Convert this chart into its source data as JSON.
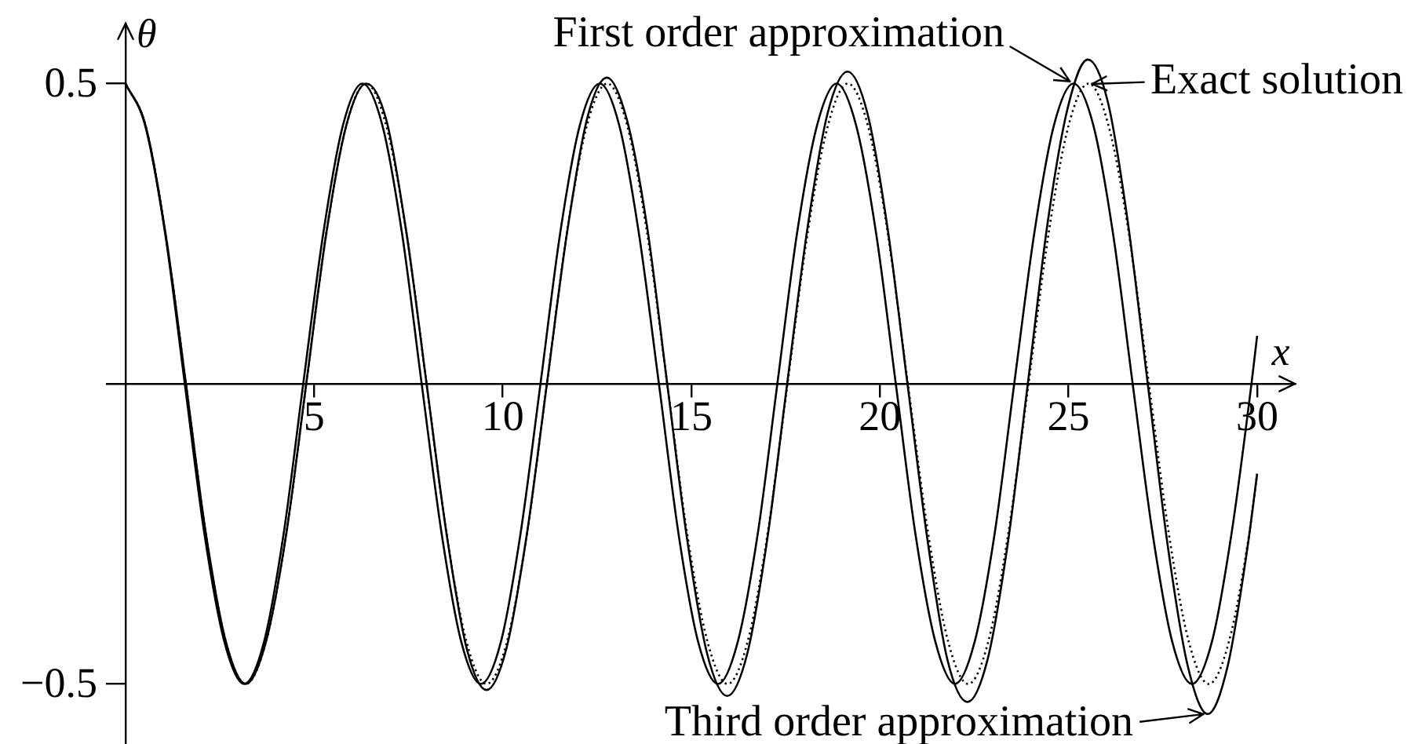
{
  "chart_data": {
    "type": "line",
    "xlabel": "x",
    "ylabel": "θ",
    "xlim": [
      -0.5,
      31
    ],
    "ylim": [
      -0.6,
      0.6
    ],
    "xticks": [
      5,
      10,
      15,
      20,
      25,
      30
    ],
    "yticks": [
      {
        "value": -0.5,
        "label": "−0.5"
      },
      0.5
    ],
    "line_style": "solid",
    "series": [
      {
        "name": "Exact solution",
        "color": "#000000",
        "line_style": "dotted",
        "x": [
          0,
          0.53,
          1.06,
          1.6,
          2.13,
          2.66,
          3.19,
          3.72,
          4.26,
          4.79,
          5.32,
          5.85,
          6.38,
          6.91,
          7.45,
          7.98,
          8.51,
          9.04,
          9.57,
          10.11,
          10.64,
          11.17,
          11.7,
          12.23,
          12.77,
          13.3,
          13.83,
          14.36,
          14.89,
          15.43,
          15.96,
          16.49,
          17.02,
          17.55,
          18.08,
          18.62,
          19.15,
          19.68,
          20.21,
          20.74,
          21.28,
          21.81,
          22.34,
          22.87,
          23.4,
          23.94,
          24.47,
          25,
          25.53,
          26.06,
          26.6,
          27.13,
          27.66,
          28.19,
          28.72,
          29.25,
          29.79,
          30
        ],
        "values": [
          0.5,
          0.43,
          0.25,
          0,
          -0.25,
          -0.43,
          -0.5,
          -0.43,
          -0.25,
          0,
          0.25,
          0.43,
          0.5,
          0.43,
          0.25,
          0,
          -0.25,
          -0.43,
          -0.5,
          -0.43,
          -0.25,
          0,
          0.25,
          0.43,
          0.5,
          0.43,
          0.25,
          0,
          -0.25,
          -0.43,
          -0.5,
          -0.43,
          -0.25,
          0,
          0.25,
          0.43,
          0.5,
          0.43,
          0.25,
          0,
          -0.25,
          -0.43,
          -0.5,
          -0.43,
          -0.25,
          0,
          0.25,
          0.43,
          0.5,
          0.43,
          0.25,
          0,
          -0.25,
          -0.43,
          -0.5,
          -0.43,
          -0.25,
          -0.15
        ]
      },
      {
        "name": "First order approximation",
        "color": "#000000",
        "x": [
          0,
          0.52,
          1.05,
          1.57,
          2.09,
          2.62,
          3.14,
          3.67,
          4.19,
          4.71,
          5.24,
          5.76,
          6.28,
          6.81,
          7.33,
          7.85,
          8.38,
          8.9,
          9.42,
          9.95,
          10.47,
          11,
          11.52,
          12.04,
          12.57,
          13.09,
          13.61,
          14.14,
          14.66,
          15.18,
          15.71,
          16.23,
          16.76,
          17.28,
          17.8,
          18.33,
          18.85,
          19.37,
          19.9,
          20.42,
          20.94,
          21.47,
          21.99,
          22.51,
          23.04,
          23.56,
          24.09,
          24.61,
          25.13,
          25.66,
          26.18,
          26.7,
          27.23,
          27.75,
          28.27,
          28.8,
          29.32,
          29.85,
          30
        ],
        "values": [
          0.5,
          0.43,
          0.25,
          0,
          -0.25,
          -0.43,
          -0.5,
          -0.43,
          -0.25,
          0,
          0.25,
          0.43,
          0.5,
          0.43,
          0.25,
          0,
          -0.25,
          -0.43,
          -0.5,
          -0.43,
          -0.25,
          0,
          0.25,
          0.43,
          0.5,
          0.43,
          0.25,
          0,
          -0.25,
          -0.43,
          -0.5,
          -0.43,
          -0.25,
          0,
          0.25,
          0.43,
          0.5,
          0.43,
          0.25,
          0,
          -0.25,
          -0.43,
          -0.5,
          -0.43,
          -0.25,
          0,
          0.25,
          0.43,
          0.5,
          0.43,
          0.25,
          0,
          -0.25,
          -0.43,
          -0.5,
          -0.43,
          -0.25,
          0,
          0.08
        ]
      },
      {
        "name": "Third order approximation",
        "color": "#000000",
        "x": [
          0,
          0.53,
          1.06,
          1.6,
          2.13,
          2.66,
          3.19,
          3.72,
          4.26,
          4.79,
          5.32,
          5.85,
          6.38,
          6.91,
          7.45,
          7.98,
          8.51,
          9.04,
          9.57,
          10.1,
          10.64,
          11.17,
          11.7,
          12.23,
          12.76,
          13.29,
          13.83,
          14.36,
          14.89,
          15.42,
          15.95,
          16.48,
          17.01,
          17.54,
          18.08,
          18.61,
          19.14,
          19.67,
          20.2,
          20.73,
          21.26,
          21.79,
          22.32,
          22.85,
          23.38,
          23.92,
          24.45,
          24.98,
          25.51,
          26.04,
          26.57,
          27.1,
          27.63,
          28.16,
          28.69,
          29.22,
          29.75,
          30
        ],
        "values": [
          0.5,
          0.43,
          0.25,
          0,
          -0.25,
          -0.43,
          -0.5,
          -0.43,
          -0.25,
          0,
          0.25,
          0.43,
          0.5,
          0.44,
          0.25,
          0,
          -0.25,
          -0.44,
          -0.51,
          -0.44,
          -0.25,
          0,
          0.25,
          0.44,
          0.51,
          0.44,
          0.26,
          0,
          -0.26,
          -0.45,
          -0.52,
          -0.45,
          -0.26,
          0,
          0.26,
          0.45,
          0.52,
          0.45,
          0.26,
          0,
          -0.26,
          -0.46,
          -0.53,
          -0.46,
          -0.27,
          0,
          0.27,
          0.46,
          0.54,
          0.47,
          0.27,
          0,
          -0.27,
          -0.47,
          -0.55,
          -0.47,
          -0.27,
          -0.15
        ]
      }
    ]
  }
}
